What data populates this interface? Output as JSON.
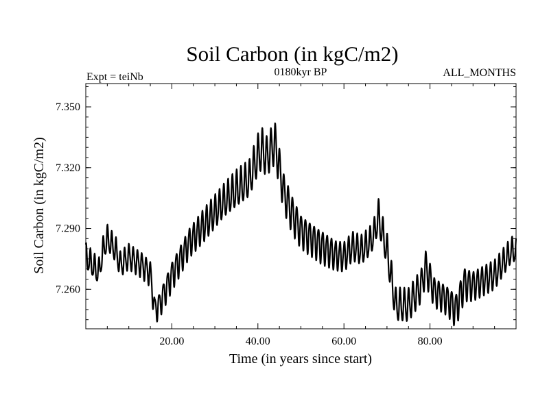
{
  "chart_data": {
    "type": "line",
    "title": "Soil Carbon (in kgC/m2)",
    "subtitle_left": "Expt = teiNb",
    "subtitle_center": "0180kyr BP",
    "subtitle_right": "ALL_MONTHS",
    "xlabel": "Time (in years since start)",
    "ylabel": "Soil Carbon (in kgC/m2)",
    "xlim": [
      0,
      100
    ],
    "ylim": [
      7.2405,
      7.3615
    ],
    "x_ticks": [
      20,
      40,
      60,
      80
    ],
    "x_tick_labels": [
      "20.00",
      "40.00",
      "60.00",
      "80.00"
    ],
    "y_ticks": [
      7.26,
      7.29,
      7.32,
      7.35
    ],
    "y_tick_labels": [
      "7.260",
      "7.290",
      "7.320",
      "7.350"
    ],
    "grid": false,
    "series": [
      {
        "color": "#000000",
        "oscillation": "annual cycle",
        "anchors": {
          "x": [
            0,
            3,
            4,
            5,
            7,
            8,
            10,
            13,
            15,
            16,
            17,
            20,
            24,
            28,
            32,
            35,
            38,
            40,
            41,
            42,
            43,
            44,
            46,
            48,
            50,
            55,
            58,
            60,
            62,
            64,
            66,
            67,
            68,
            69,
            70,
            72,
            75,
            78,
            79,
            80,
            81,
            84,
            86,
            88,
            90,
            95,
            99
          ],
          "center": [
            7.276,
            7.268,
            7.279,
            7.285,
            7.279,
            7.272,
            7.276,
            7.272,
            7.268,
            7.25,
            7.252,
            7.267,
            7.283,
            7.293,
            7.303,
            7.309,
            7.314,
            7.326,
            7.329,
            7.325,
            7.329,
            7.332,
            7.308,
            7.297,
            7.289,
            7.281,
            7.277,
            7.276,
            7.281,
            7.279,
            7.283,
            7.287,
            7.296,
            7.287,
            7.279,
            7.252,
            7.252,
            7.262,
            7.271,
            7.265,
            7.259,
            7.255,
            7.25,
            7.263,
            7.262,
            7.267,
            7.279
          ],
          "amplitude": [
            0.006,
            0.006,
            0.006,
            0.006,
            0.006,
            0.006,
            0.006,
            0.006,
            0.006,
            0.006,
            0.006,
            0.007,
            0.007,
            0.008,
            0.008,
            0.009,
            0.009,
            0.01,
            0.01,
            0.01,
            0.01,
            0.01,
            0.009,
            0.009,
            0.008,
            0.008,
            0.007,
            0.007,
            0.007,
            0.007,
            0.007,
            0.007,
            0.008,
            0.008,
            0.008,
            0.008,
            0.008,
            0.008,
            0.008,
            0.008,
            0.007,
            0.007,
            0.008,
            0.008,
            0.007,
            0.007,
            0.006
          ]
        }
      }
    ]
  }
}
